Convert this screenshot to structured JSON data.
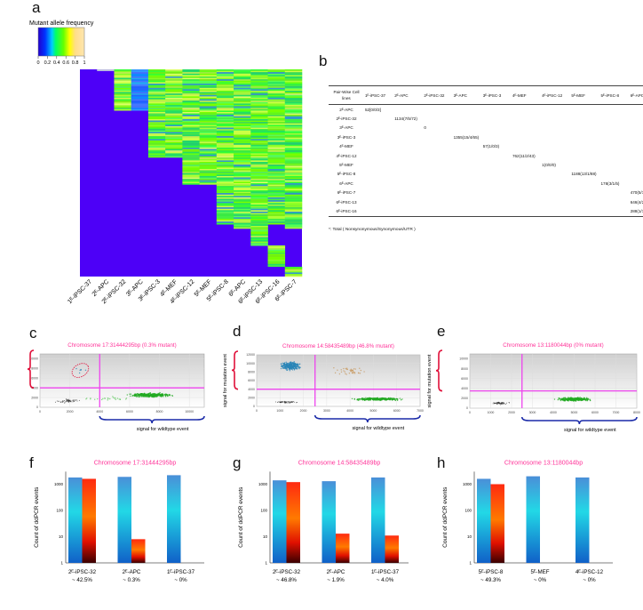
{
  "panels": {
    "a": "a",
    "b": "b",
    "c": "c",
    "d": "d",
    "e": "e",
    "f": "f",
    "g": "g",
    "h": "h"
  },
  "colors": {
    "heat_blue": "#4d00f7",
    "title_pink": "#ff3399",
    "threshold_magenta": "#ee44ee",
    "mutant_blue": "#2a86b8",
    "wildtype_green": "#22aa22",
    "negative_black": "#333333",
    "double_orange": "#c89a60",
    "bar_blue": "#2a9fd8",
    "bar_red": "#ff3300",
    "brace_red": "#e0103a",
    "brace_blue": "#1a2aa8"
  },
  "chart_data": [
    {
      "panel": "a",
      "type": "heatmap",
      "colorbar": {
        "title": "Mutant allele frequency",
        "range": [
          0,
          1
        ],
        "ticks": [
          "0",
          "0.2",
          "0.4",
          "0.6",
          "0.8",
          "1"
        ]
      },
      "columns": [
        "1ᴱ-iPSC-37",
        "2ᴱ-APC",
        "2ᴱ-iPSC-32",
        "3ᴱ-APC",
        "3ᴱ-iPSC-3",
        "4ᴱ-MEF",
        "4ᴱ-iPSC-12",
        "5ᴱ-MEF",
        "5ᴱ-iPSC-8",
        "6ᴱ-APC",
        "6ᴱ-iPSC-13",
        "6ᴱ-iPSC-16",
        "6ᴱ-iPSC-7"
      ]
    },
    {
      "panel": "b",
      "type": "table",
      "header": [
        "Pair-Wise Cell lines",
        "1ᴱ-iPSC-37",
        "2ᴱ-APC",
        "2ᴱ-iPSC-32",
        "3ᴱ-APC",
        "3ᴱ-iPSC-3",
        "4ᴱ-MEF",
        "4ᴱ-iPSC-12",
        "5ᴱ-MEF",
        "5ᴱ-iPSC-8",
        "6ᴱ-APC"
      ],
      "rows": [
        {
          "label": "2ᴱ-APC",
          "col": 1,
          "value": "52[0/0/3]"
        },
        {
          "label": "2ᴱ-iPSC-32",
          "col": 2,
          "value": "1134(7/5/72)"
        },
        {
          "label": "3ᴱ-APC",
          "col": 3,
          "value": "0"
        },
        {
          "label": "3ᴱ-iPSC-3",
          "col": 4,
          "value": "1355(15/4/65)"
        },
        {
          "label": "4ᴱ-MEF",
          "col": 5,
          "value": "57(1/0/3)"
        },
        {
          "label": "4ᴱ-iPSC-12",
          "col": 6,
          "value": "762(11/2/43)"
        },
        {
          "label": "5ᴱ-MEF",
          "col": 7,
          "value": "1(0/0/0)"
        },
        {
          "label": "5ᴱ-iPSC-8",
          "col": 8,
          "value": "1188(13/1/88)"
        },
        {
          "label": "6ᴱ-APC",
          "col": 9,
          "value": "178(3/1/5)"
        },
        {
          "label": "6ᴱ-iPSC-7",
          "col": 10,
          "value": "470(5/1/28)"
        },
        {
          "label": "6ᴱ-iPSC-13",
          "col": 10,
          "value": "646(4/2/46)"
        },
        {
          "label": "6ᴱ-iPSC-16",
          "col": 10,
          "value": "288(1/1/15)"
        }
      ],
      "footnote": "*: Total ( Nonsynonymous/Synonymous/UTR )"
    },
    {
      "panel": "c",
      "type": "scatter",
      "title": "Chromosome 17:31444295bp  (0.3% mutant)",
      "xlabel": "signal for wildtype event",
      "ylabel": "",
      "xlim": [
        0,
        11000
      ],
      "ylim": [
        0,
        11000
      ],
      "xticks": [
        0,
        2000,
        4000,
        6000,
        8000,
        10000
      ],
      "yticks": [
        0,
        2000,
        4000,
        6000,
        8000,
        10000
      ],
      "thresholds": {
        "x": 4000,
        "y": 4000
      },
      "clusters": [
        {
          "kind": "negative",
          "cx": 1900,
          "cy": 1300,
          "sx": 500,
          "sy": 250,
          "n": 60
        },
        {
          "kind": "wildtype",
          "cx": 7400,
          "cy": 2500,
          "sx": 800,
          "sy": 250,
          "n": 400
        },
        {
          "kind": "wildtype-sparse",
          "cx": 4500,
          "cy": 1800,
          "sx": 900,
          "sy": 300,
          "n": 25
        },
        {
          "kind": "mutant",
          "cx": 2700,
          "cy": 7600,
          "sx": 300,
          "sy": 500,
          "n": 6
        }
      ],
      "annotation": "red dashed ellipse around mutant events"
    },
    {
      "panel": "d",
      "type": "scatter",
      "title": "Chromosome 14:58435489bp (46.8% mutant)",
      "xlabel": "signal for wildtype event",
      "ylabel": "signal for mutation event",
      "xlim": [
        0,
        7000
      ],
      "ylim": [
        0,
        12000
      ],
      "xticks": [
        0,
        1000,
        2000,
        3000,
        4000,
        5000,
        6000,
        7000
      ],
      "yticks": [
        0,
        2000,
        4000,
        6000,
        8000,
        10000,
        12000
      ],
      "thresholds": {
        "x": 2500,
        "y": 4000
      },
      "clusters": [
        {
          "kind": "mutant",
          "cx": 1450,
          "cy": 9400,
          "sx": 250,
          "sy": 550,
          "n": 400
        },
        {
          "kind": "double",
          "cx": 4000,
          "cy": 8200,
          "sx": 450,
          "sy": 600,
          "n": 40
        },
        {
          "kind": "wildtype",
          "cx": 5200,
          "cy": 1700,
          "sx": 600,
          "sy": 180,
          "n": 350
        },
        {
          "kind": "negative",
          "cx": 1300,
          "cy": 1000,
          "sx": 300,
          "sy": 150,
          "n": 60
        }
      ]
    },
    {
      "panel": "e",
      "type": "scatter",
      "title": "Chromosome 13:1180044bp (0% mutant)",
      "xlabel": "signal for wildtype event",
      "ylabel": "signal for mutation event",
      "xlim": [
        0,
        8000
      ],
      "ylim": [
        0,
        11000
      ],
      "xticks": [
        0,
        1000,
        2000,
        3000,
        4000,
        5000,
        6000,
        7000,
        8000
      ],
      "yticks": [
        0,
        2000,
        4000,
        6000,
        8000,
        10000
      ],
      "thresholds": {
        "x": 2500,
        "y": 3500
      },
      "clusters": [
        {
          "kind": "negative",
          "cx": 1450,
          "cy": 1000,
          "sx": 250,
          "sy": 150,
          "n": 60
        },
        {
          "kind": "wildtype",
          "cx": 5000,
          "cy": 1800,
          "sx": 450,
          "sy": 200,
          "n": 400
        }
      ]
    },
    {
      "panel": "f",
      "type": "bar",
      "title": "Chromosome 17:31444295bp",
      "ylabel": "Count of ddPCR events",
      "yscale": "log",
      "ylim": [
        1,
        3000
      ],
      "yticks": [
        "1",
        "10",
        "100",
        "1000"
      ],
      "categories": [
        [
          "2ᴱ-iPSC-32",
          "~ 42.5%"
        ],
        [
          "2ᴱ-APC",
          "~ 0.3%"
        ],
        [
          "1ᴱ-iPSC-37",
          "~ 0%"
        ]
      ],
      "series": [
        {
          "color": "blue",
          "values": [
            1800,
            1900,
            2200
          ]
        },
        {
          "color": "red",
          "values": [
            1600,
            8,
            null
          ]
        }
      ]
    },
    {
      "panel": "g",
      "type": "bar",
      "title": "Chromosome 14:58435489bp",
      "ylabel": "Count of ddPCR events",
      "yscale": "log",
      "ylim": [
        1,
        3000
      ],
      "yticks": [
        "1",
        "10",
        "100",
        "1000"
      ],
      "categories": [
        [
          "2ᴱ-iPSC-32",
          "~ 46.8%"
        ],
        [
          "2ᴱ-APC",
          "~ 1.9%"
        ],
        [
          "1ᴱ-iPSC-37",
          "~ 4.0%"
        ]
      ],
      "series": [
        {
          "color": "blue",
          "values": [
            1400,
            1300,
            1800
          ]
        },
        {
          "color": "red",
          "values": [
            1200,
            13,
            11
          ]
        }
      ]
    },
    {
      "panel": "h",
      "type": "bar",
      "title": "Chromosome 13:1180044bp",
      "ylabel": "Count of ddPCR events",
      "yscale": "log",
      "ylim": [
        1,
        3000
      ],
      "yticks": [
        "1",
        "10",
        "100",
        "1000"
      ],
      "categories": [
        [
          "5ᴱ-iPSC-8",
          "~ 49.3%"
        ],
        [
          "5ᴱ-MEF",
          "~ 0%"
        ],
        [
          "4ᴱ-iPSC-12",
          "~ 0%"
        ]
      ],
      "series": [
        {
          "color": "blue",
          "values": [
            1600,
            2000,
            1800
          ]
        },
        {
          "color": "red",
          "values": [
            1000,
            null,
            null
          ]
        }
      ]
    }
  ]
}
